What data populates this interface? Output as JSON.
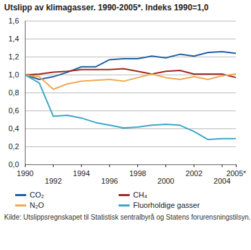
{
  "chart_data": {
    "type": "line",
    "title": "Utslipp av klimagasser. 1990-2005*. Indeks 1990=1,0",
    "source": "Kilde: Utslippsregnskapet til Statistisk sentralbyrå og Statens forurensningstilsyn.",
    "x": [
      1990,
      1991,
      1992,
      1993,
      1994,
      1995,
      1996,
      1997,
      1998,
      1999,
      2000,
      2001,
      2002,
      2003,
      2004,
      2005
    ],
    "series": [
      {
        "name": "CO₂",
        "color": "#1f5fa0",
        "values": [
          1.0,
          0.95,
          0.98,
          1.03,
          1.09,
          1.09,
          1.17,
          1.18,
          1.18,
          1.21,
          1.19,
          1.23,
          1.21,
          1.25,
          1.26,
          1.24
        ]
      },
      {
        "name": "CH₄",
        "color": "#a0281e",
        "values": [
          1.0,
          1.01,
          1.03,
          1.04,
          1.06,
          1.06,
          1.06,
          1.07,
          1.04,
          1.01,
          1.04,
          1.05,
          1.01,
          1.01,
          1.01,
          0.97
        ]
      },
      {
        "name": "N₂O",
        "color": "#f0a850",
        "values": [
          1.0,
          0.98,
          0.84,
          0.9,
          0.93,
          0.94,
          0.95,
          0.93,
          0.97,
          1.01,
          0.97,
          0.95,
          0.98,
          0.95,
          0.99,
          1.01
        ]
      },
      {
        "name": "Fluorholdige gasser",
        "color": "#3aa6c4",
        "values": [
          1.0,
          0.91,
          0.54,
          0.55,
          0.52,
          0.47,
          0.44,
          0.41,
          0.42,
          0.44,
          0.45,
          0.44,
          0.37,
          0.28,
          0.29,
          0.29
        ]
      }
    ],
    "xlim": [
      1990,
      2005
    ],
    "xticks": [
      1990,
      1992,
      1994,
      1996,
      1998,
      2000,
      2002,
      2004,
      {
        "value": 2005,
        "label": "2005*"
      }
    ],
    "ylim": [
      0,
      1.6
    ],
    "yticks": [
      {
        "value": 0,
        "label": "0,0"
      },
      {
        "value": 0.2,
        "label": "0,2"
      },
      {
        "value": 0.4,
        "label": "0,4"
      },
      {
        "value": 0.6,
        "label": "0,6"
      },
      {
        "value": 0.8,
        "label": "0,8"
      },
      {
        "value": 1.0,
        "label": "1,0"
      },
      {
        "value": 1.2,
        "label": "1,2"
      },
      {
        "value": 1.4,
        "label": "1,4"
      },
      {
        "value": 1.6,
        "label": "1,6"
      }
    ],
    "grid": true,
    "legend": "bottom"
  }
}
